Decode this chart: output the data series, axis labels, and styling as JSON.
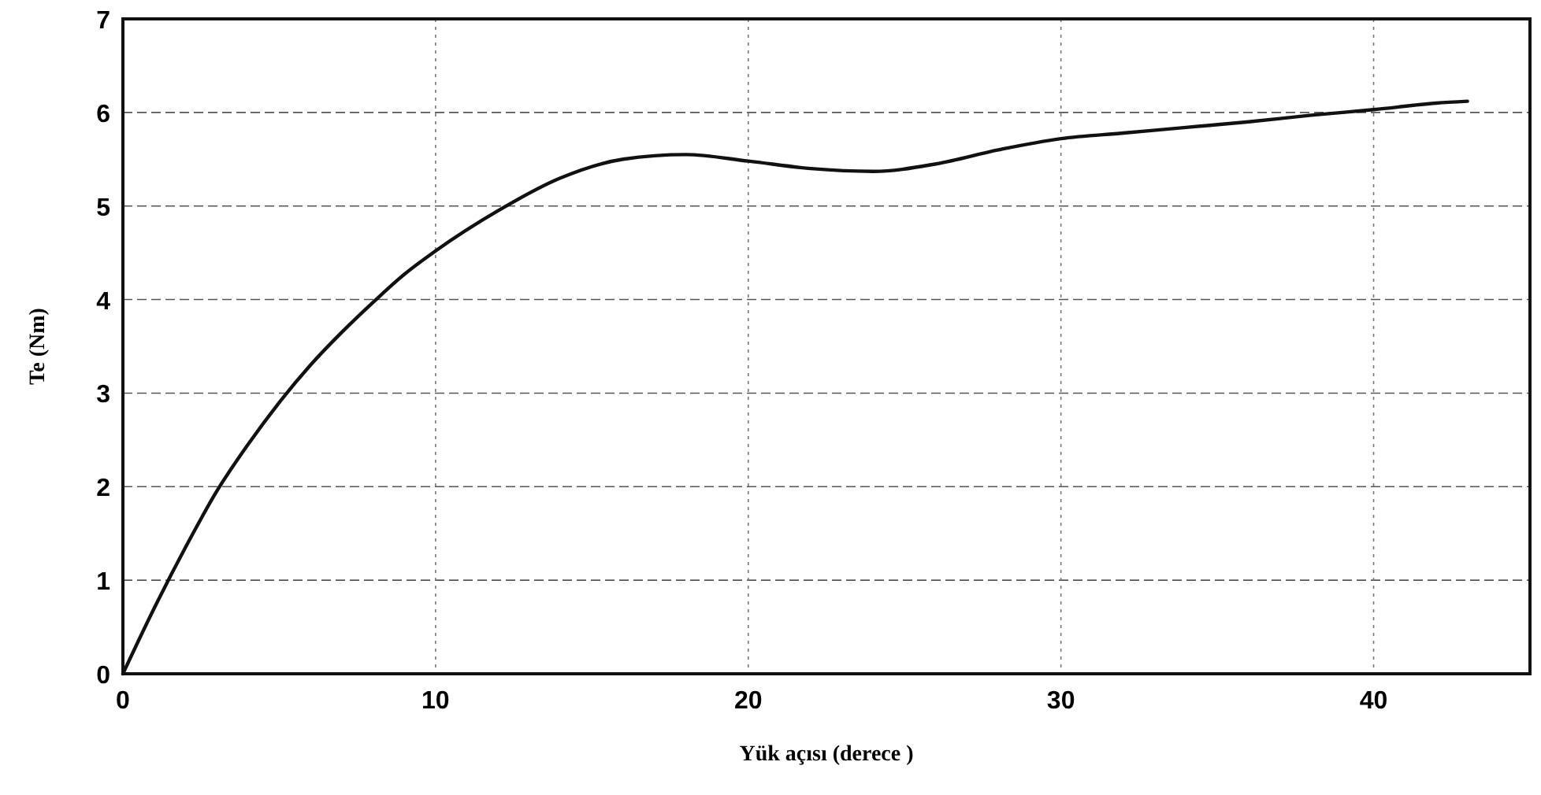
{
  "chart_data": {
    "type": "line",
    "xlabel": "Yük açısı (derece )",
    "ylabel": "Te (Nm)",
    "x": [
      0,
      1,
      2,
      3,
      4,
      5,
      6,
      7,
      8,
      9,
      10,
      12,
      14,
      16,
      18,
      20,
      22,
      24,
      26,
      28,
      30,
      32,
      34,
      36,
      38,
      40,
      42,
      43
    ],
    "series": [
      {
        "color": "#111111",
        "values": [
          0,
          0.7,
          1.35,
          1.95,
          2.45,
          2.9,
          3.3,
          3.65,
          3.97,
          4.27,
          4.52,
          4.95,
          5.3,
          5.5,
          5.55,
          5.48,
          5.4,
          5.37,
          5.45,
          5.6,
          5.72,
          5.78,
          5.84,
          5.9,
          5.97,
          6.03,
          6.1,
          6.12
        ]
      }
    ],
    "xlim": [
      0,
      45
    ],
    "ylim": [
      0,
      7
    ],
    "xticks": [
      0,
      10,
      20,
      30,
      40
    ],
    "yticks": [
      0,
      1,
      2,
      3,
      4,
      5,
      6,
      7
    ],
    "grid": true,
    "line_style": "solid"
  }
}
